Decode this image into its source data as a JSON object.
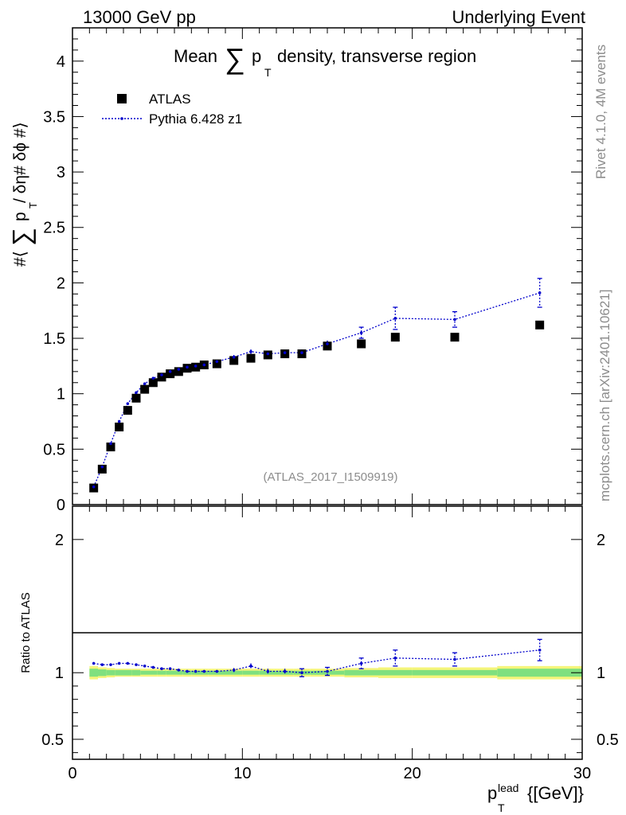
{
  "header": {
    "left": "13000 GeV pp",
    "right": "Underlying Event"
  },
  "side_labels": {
    "rivet": "Rivet 4.1.0,  4M events",
    "mcplots": "mcplots.cern.ch [arXiv:2401.10621]"
  },
  "colors": {
    "data": "#000000",
    "mc": "#0000cc",
    "band_inner": "#7fe07f",
    "band_outer": "#f5f57a"
  },
  "chart_data": {
    "type": "scatter",
    "title_prefix": "Mean",
    "title_sum": "∑",
    "title_p": "p",
    "title_sub": "T",
    "title_suffix": "density, transverse region",
    "ylabel_prefix": "#⟨",
    "ylabel_sum": "∑",
    "ylabel_p": "p",
    "ylabel_sub": "T",
    "ylabel_suffix": " / δη# δϕ #⟩",
    "xlabel_p": "p",
    "xlabel_sup": "lead",
    "xlabel_sub": "T",
    "xlabel_unit": "{[GeV]}",
    "ratio_ylabel": "Ratio to ATLAS",
    "analysis_id": "(ATLAS_2017_I1509919)",
    "xlim": [
      0,
      30
    ],
    "ylim_main": [
      0,
      4.3
    ],
    "ylim_ratio": [
      0.35,
      2.25
    ],
    "xticks": [
      0,
      10,
      20,
      30
    ],
    "yticks_main": [
      0,
      0.5,
      1,
      1.5,
      2,
      2.5,
      3,
      3.5,
      4
    ],
    "ytick_labels_main": [
      "0",
      "0.5",
      "1",
      "1.5",
      "2",
      "2.5",
      "3",
      "3.5",
      "4"
    ],
    "yticks_ratio": [
      0.5,
      1,
      2
    ],
    "ytick_labels_ratio": [
      "0.5",
      "1",
      "2"
    ],
    "legend": [
      {
        "label": "ATLAS",
        "style": "square"
      },
      {
        "label": "Pythia 6.428 z1",
        "style": "dotted-line"
      }
    ],
    "x": [
      1.25,
      1.75,
      2.25,
      2.75,
      3.25,
      3.75,
      4.25,
      4.75,
      5.25,
      5.75,
      6.25,
      6.75,
      7.25,
      7.75,
      8.5,
      9.5,
      10.5,
      11.5,
      12.5,
      13.5,
      15.0,
      17.0,
      19.0,
      22.5,
      27.5
    ],
    "series": [
      {
        "name": "ATLAS",
        "values": [
          0.15,
          0.32,
          0.52,
          0.7,
          0.85,
          0.96,
          1.04,
          1.1,
          1.15,
          1.18,
          1.2,
          1.23,
          1.24,
          1.26,
          1.27,
          1.3,
          1.32,
          1.35,
          1.36,
          1.36,
          1.43,
          1.45,
          1.51,
          1.51,
          1.62
        ]
      },
      {
        "name": "Pythia 6.428 z1",
        "values": [
          0.16,
          0.34,
          0.55,
          0.75,
          0.91,
          1.01,
          1.09,
          1.14,
          1.17,
          1.2,
          1.22,
          1.24,
          1.25,
          1.26,
          1.29,
          1.33,
          1.38,
          1.36,
          1.37,
          1.37,
          1.45,
          1.55,
          1.68,
          1.67,
          1.91
        ],
        "errors": [
          0.01,
          0.01,
          0.01,
          0.01,
          0.01,
          0.01,
          0.01,
          0.01,
          0.01,
          0.01,
          0.01,
          0.01,
          0.01,
          0.01,
          0.01,
          0.02,
          0.02,
          0.02,
          0.02,
          0.03,
          0.03,
          0.05,
          0.1,
          0.07,
          0.13
        ]
      }
    ],
    "ratio": {
      "values": [
        1.07,
        1.06,
        1.06,
        1.07,
        1.07,
        1.06,
        1.05,
        1.04,
        1.03,
        1.03,
        1.02,
        1.01,
        1.01,
        1.01,
        1.01,
        1.02,
        1.05,
        1.01,
        1.01,
        1.0,
        1.01,
        1.07,
        1.11,
        1.1,
        1.17
      ],
      "errors": [
        0.01,
        0.01,
        0.01,
        0.01,
        0.01,
        0.01,
        0.01,
        0.01,
        0.01,
        0.01,
        0.01,
        0.01,
        0.01,
        0.01,
        0.01,
        0.015,
        0.02,
        0.02,
        0.02,
        0.03,
        0.03,
        0.04,
        0.06,
        0.05,
        0.08
      ],
      "band_edges": [
        1.0,
        1.5,
        2.0,
        2.5,
        3.0,
        3.5,
        4.0,
        4.5,
        5.0,
        5.5,
        6.0,
        6.5,
        7.0,
        7.5,
        8.0,
        9.0,
        10.0,
        11.0,
        12.0,
        13.0,
        14.0,
        16.0,
        18.0,
        20.0,
        25.0,
        30.0
      ],
      "band_inner": [
        0.03,
        0.025,
        0.02,
        0.02,
        0.02,
        0.02,
        0.015,
        0.015,
        0.015,
        0.015,
        0.015,
        0.015,
        0.015,
        0.015,
        0.015,
        0.015,
        0.015,
        0.015,
        0.015,
        0.015,
        0.015,
        0.02,
        0.02,
        0.02,
        0.03
      ],
      "band_outer": [
        0.05,
        0.04,
        0.035,
        0.03,
        0.03,
        0.03,
        0.03,
        0.03,
        0.03,
        0.03,
        0.03,
        0.03,
        0.03,
        0.03,
        0.03,
        0.03,
        0.03,
        0.03,
        0.03,
        0.03,
        0.03,
        0.035,
        0.04,
        0.04,
        0.05
      ]
    }
  }
}
